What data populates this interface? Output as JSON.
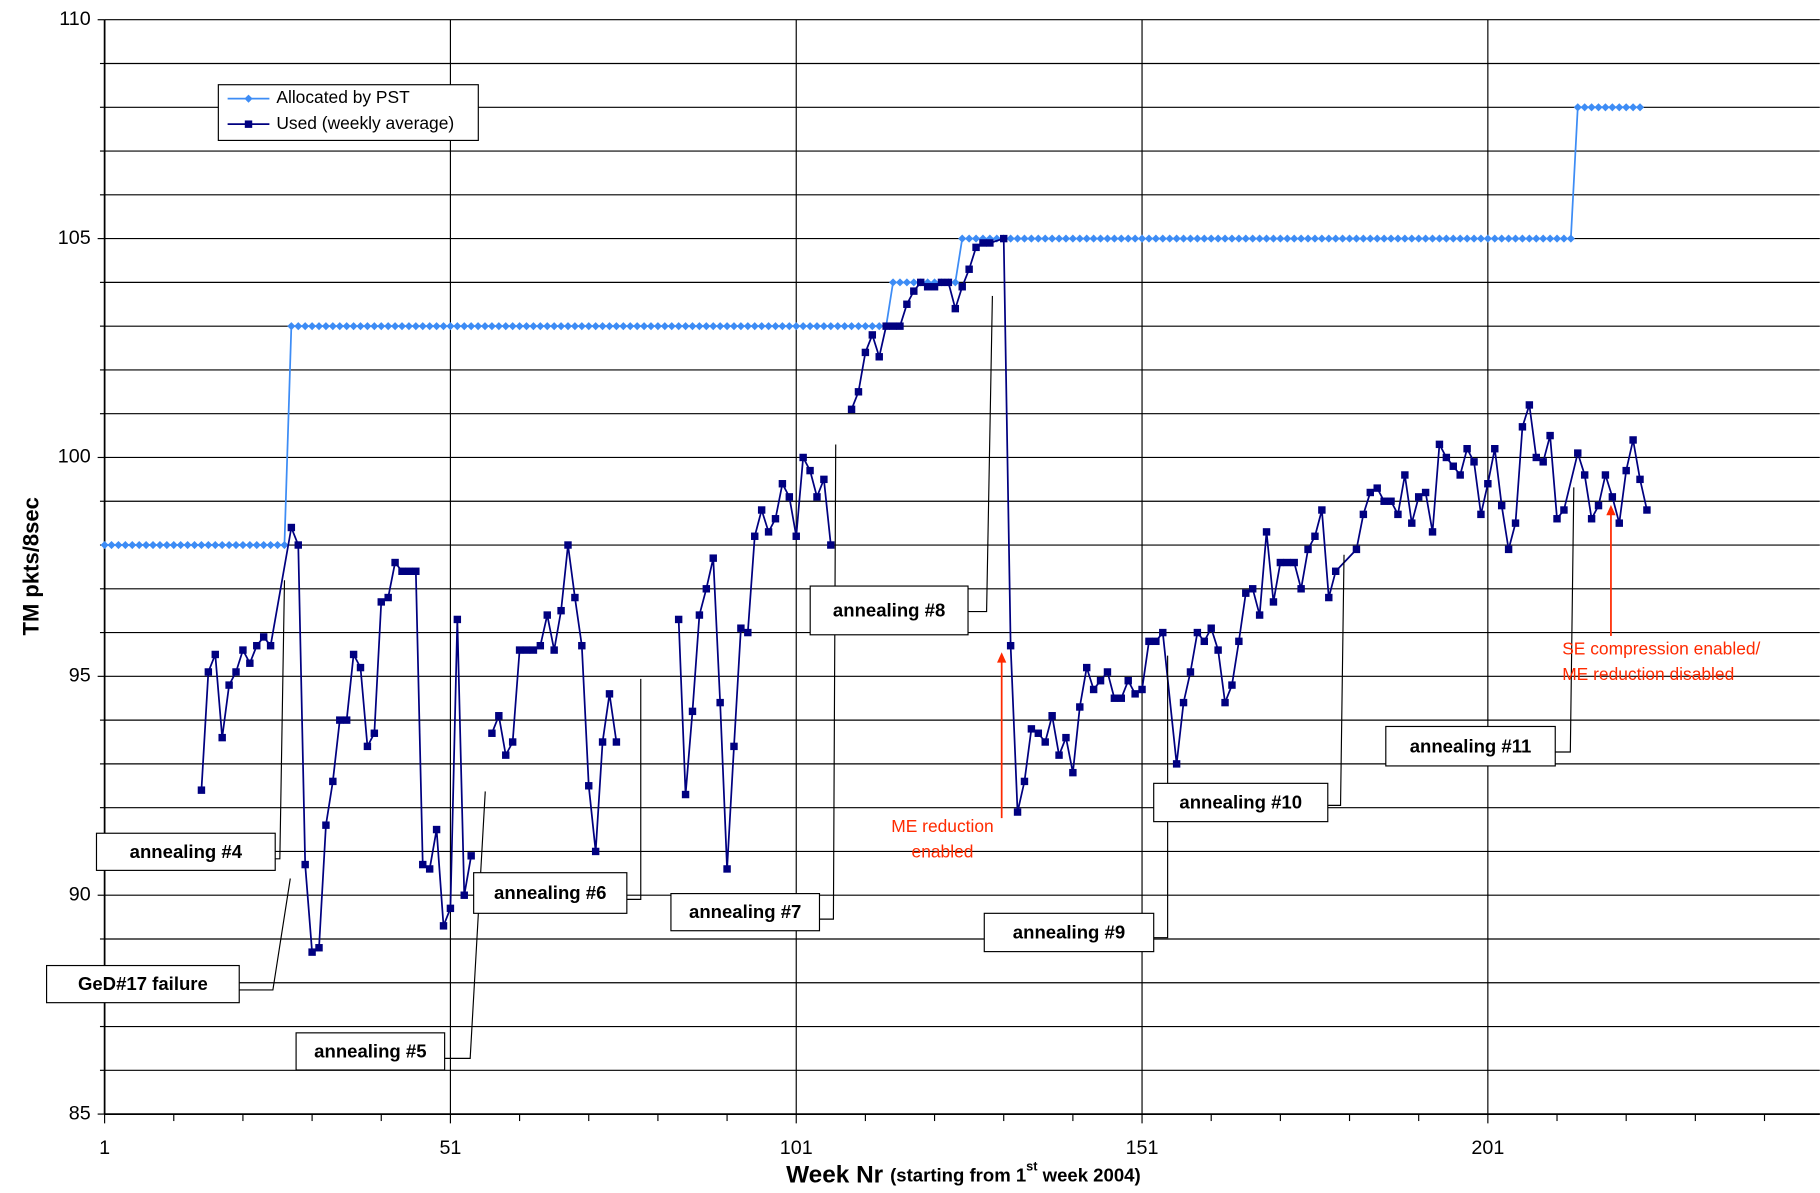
{
  "chart_data": {
    "type": "line",
    "y_label": "TM pkts/8sec",
    "x_label": {
      "bold": "Week Nr",
      "rest": "(starting from 1",
      "sup": "st",
      "tail": " week 2004)"
    },
    "xlim": [
      1,
      249
    ],
    "xticks": [
      1,
      51,
      101,
      151,
      201
    ],
    "x_minor_ticks": [
      11,
      21,
      31,
      41,
      61,
      71,
      81,
      91,
      111,
      121,
      131,
      141,
      161,
      171,
      181,
      191,
      211,
      221,
      231,
      241
    ],
    "ylim": [
      85,
      110
    ],
    "yticks": [
      85,
      90,
      95,
      100,
      105,
      110
    ],
    "y_grid": [
      86,
      87,
      88,
      89,
      91,
      92,
      93,
      94,
      96,
      97,
      98,
      99,
      101,
      102,
      103,
      104,
      106,
      107,
      108,
      109
    ],
    "grid": true,
    "legend": "upper left",
    "series": [
      {
        "name": "Allocated by PST",
        "color": "#3d8cf5",
        "marker": "diamond",
        "x": [
          1,
          2,
          3,
          4,
          5,
          6,
          7,
          8,
          9,
          10,
          11,
          12,
          13,
          14,
          15,
          16,
          17,
          18,
          19,
          20,
          21,
          22,
          23,
          24,
          25,
          26,
          27,
          28,
          29,
          30,
          31,
          32,
          33,
          34,
          35,
          36,
          37,
          38,
          39,
          40,
          41,
          42,
          43,
          44,
          45,
          46,
          47,
          48,
          49,
          50,
          51,
          52,
          53,
          54,
          55,
          56,
          57,
          58,
          59,
          60,
          61,
          62,
          63,
          64,
          65,
          66,
          67,
          68,
          69,
          70,
          71,
          72,
          73,
          74,
          75,
          76,
          77,
          78,
          79,
          80,
          81,
          82,
          83,
          84,
          85,
          86,
          87,
          88,
          89,
          90,
          91,
          92,
          93,
          94,
          95,
          96,
          97,
          98,
          99,
          100,
          101,
          102,
          103,
          104,
          105,
          106,
          107,
          108,
          109,
          110,
          111,
          112,
          113,
          114,
          115,
          116,
          117,
          118,
          119,
          120,
          121,
          122,
          123,
          124,
          125,
          126,
          127,
          128,
          129,
          130,
          131,
          132,
          133,
          134,
          135,
          136,
          137,
          138,
          139,
          140,
          141,
          142,
          143,
          144,
          145,
          146,
          147,
          148,
          149,
          150,
          151,
          152,
          153,
          154,
          155,
          156,
          157,
          158,
          159,
          160,
          161,
          162,
          163,
          164,
          165,
          166,
          167,
          168,
          169,
          170,
          171,
          172,
          173,
          174,
          175,
          176,
          177,
          178,
          179,
          180,
          181,
          182,
          183,
          184,
          185,
          186,
          187,
          188,
          189,
          190,
          191,
          192,
          193,
          194,
          195,
          196,
          197,
          198,
          199,
          200,
          201,
          202,
          203,
          204,
          205,
          206,
          207,
          208,
          209,
          210,
          211,
          212,
          213,
          214,
          215,
          216,
          217,
          218,
          219,
          220,
          221,
          222,
          223
        ],
        "values": [
          98,
          98,
          98,
          98,
          98,
          98,
          98,
          98,
          98,
          98,
          98,
          98,
          98,
          98,
          98,
          98,
          98,
          98,
          98,
          98,
          98,
          98,
          98,
          98,
          98,
          98,
          98,
          103,
          103,
          103,
          103,
          103,
          103,
          103,
          103,
          103,
          103,
          103,
          103,
          103,
          103,
          103,
          103,
          103,
          103,
          103,
          103,
          103,
          103,
          103,
          103,
          103,
          103,
          103,
          103,
          103,
          103,
          103,
          103,
          103,
          103,
          103,
          103,
          103,
          103,
          103,
          103,
          103,
          103,
          103,
          103,
          103,
          103,
          103,
          103,
          103,
          103,
          103,
          103,
          103,
          103,
          103,
          103,
          103,
          103,
          103,
          103,
          103,
          103,
          103,
          103,
          103,
          103,
          103,
          103,
          103,
          103,
          103,
          103,
          103,
          103,
          103,
          103,
          103,
          103,
          103,
          103,
          103,
          103,
          103,
          103,
          103,
          103,
          103,
          104,
          104,
          104,
          104,
          104,
          104,
          104,
          104,
          104,
          104,
          105,
          105,
          105,
          105,
          105,
          105,
          105,
          105,
          105,
          105,
          105,
          105,
          105,
          105,
          105,
          105,
          105,
          105,
          105,
          105,
          105,
          105,
          105,
          105,
          105,
          105,
          105,
          105,
          105,
          105,
          105,
          105,
          105,
          105,
          105,
          105,
          105,
          105,
          105,
          105,
          105,
          105,
          105,
          105,
          105,
          105,
          105,
          105,
          105,
          105,
          105,
          105,
          105,
          105,
          105,
          105,
          105,
          105,
          105,
          105,
          105,
          105,
          105,
          105,
          105,
          105,
          105,
          105,
          105,
          105,
          105,
          105,
          105,
          105,
          105,
          105,
          105,
          105,
          105,
          105,
          105,
          105,
          105,
          105,
          105,
          105,
          105,
          105,
          105,
          108,
          108,
          108,
          108,
          108,
          108,
          108,
          108,
          108,
          108
        ]
      },
      {
        "name": "Used (weekly average)",
        "color": "#000080",
        "marker": "square",
        "x": [
          15,
          16,
          17,
          18,
          19,
          20,
          21,
          22,
          23,
          24,
          25,
          28,
          29,
          30,
          31,
          32,
          33,
          34,
          35,
          36,
          37,
          38,
          39,
          40,
          41,
          42,
          43,
          44,
          45,
          46,
          47,
          48,
          49,
          50,
          51,
          52,
          53,
          54,
          55,
          57,
          58,
          59,
          60,
          61,
          62,
          63,
          64,
          65,
          66,
          67,
          68,
          69,
          70,
          71,
          72,
          73,
          74,
          75,
          80,
          84,
          85,
          86,
          87,
          88,
          89,
          90,
          91,
          92,
          93,
          94,
          95,
          96,
          97,
          98,
          99,
          100,
          101,
          102,
          103,
          104,
          105,
          106,
          107,
          109,
          110,
          111,
          112,
          113,
          114,
          115,
          116,
          117,
          118,
          119,
          120,
          121,
          122,
          123,
          124,
          125,
          126,
          127,
          128,
          129,
          131,
          132,
          133,
          134,
          135,
          136,
          137,
          138,
          139,
          140,
          141,
          142,
          143,
          144,
          145,
          146,
          147,
          148,
          149,
          150,
          151,
          152,
          153,
          154,
          156,
          157,
          158,
          159,
          160,
          161,
          162,
          163,
          164,
          165,
          166,
          167,
          168,
          169,
          170,
          171,
          172,
          173,
          174,
          175,
          176,
          177,
          178,
          179,
          182,
          183,
          184,
          185,
          186,
          187,
          188,
          189,
          190,
          191,
          192,
          193,
          194,
          195,
          196,
          197,
          198,
          199,
          200,
          201,
          202,
          203,
          204,
          205,
          206,
          207,
          208,
          209,
          210,
          211,
          212,
          214,
          215,
          216,
          217,
          218,
          219,
          220,
          221,
          222,
          223,
          224
        ],
        "values": [
          92.4,
          95.1,
          95.5,
          93.6,
          94.8,
          95.1,
          95.6,
          95.3,
          95.7,
          95.9,
          95.7,
          98.4,
          98.0,
          90.7,
          88.7,
          88.8,
          91.6,
          92.6,
          94.0,
          94.0,
          95.5,
          95.2,
          93.4,
          93.7,
          96.7,
          96.8,
          97.6,
          97.4,
          97.4,
          97.4,
          90.7,
          90.6,
          91.5,
          89.3,
          89.7,
          96.3,
          90.0,
          90.9,
          null,
          93.7,
          94.1,
          93.2,
          93.5,
          95.6,
          95.6,
          95.6,
          95.7,
          96.4,
          95.6,
          96.5,
          98.0,
          96.8,
          95.7,
          92.5,
          91.0,
          93.5,
          94.6,
          93.5,
          null,
          96.3,
          92.3,
          94.2,
          96.4,
          97.0,
          97.7,
          94.4,
          90.6,
          93.4,
          96.1,
          96.0,
          98.2,
          98.8,
          98.3,
          98.6,
          99.4,
          99.1,
          98.2,
          100.0,
          99.7,
          99.1,
          99.5,
          98.0,
          null,
          101.1,
          101.5,
          102.4,
          102.8,
          102.3,
          103.0,
          103.0,
          103.0,
          103.5,
          103.8,
          104.0,
          103.9,
          103.9,
          104.0,
          104.0,
          103.4,
          103.9,
          104.3,
          104.8,
          104.9,
          104.9,
          105.0,
          95.7,
          91.9,
          92.6,
          93.8,
          93.7,
          93.5,
          94.1,
          93.2,
          93.6,
          92.8,
          94.3,
          95.2,
          94.7,
          94.9,
          95.1,
          94.5,
          94.5,
          94.9,
          94.6,
          94.7,
          95.8,
          95.8,
          96.0,
          93.0,
          94.4,
          95.1,
          96.0,
          95.8,
          96.1,
          95.6,
          94.4,
          94.8,
          95.8,
          96.9,
          97.0,
          96.4,
          98.3,
          96.7,
          97.6,
          97.6,
          97.6,
          97.0,
          97.9,
          98.2,
          98.8,
          96.8,
          97.4,
          97.9,
          98.7,
          99.2,
          99.3,
          99.0,
          99.0,
          98.7,
          99.6,
          98.5,
          99.1,
          99.2,
          98.3,
          100.3,
          100.0,
          99.8,
          99.6,
          100.2,
          99.9,
          98.7,
          99.4,
          100.2,
          98.9,
          97.9,
          98.5,
          100.7,
          101.2,
          100.0,
          99.9,
          100.5,
          98.6,
          98.8,
          100.1,
          99.6,
          98.6,
          98.9,
          99.6,
          99.1,
          98.5,
          99.7,
          100.4,
          99.5,
          98.8
        ]
      }
    ],
    "annotations": [
      {
        "text": "annealing #4",
        "style": "box"
      },
      {
        "text": "GeD#17 failure",
        "style": "box"
      },
      {
        "text": "annealing #5",
        "style": "box"
      },
      {
        "text": "annealing #6",
        "style": "box"
      },
      {
        "text": "annealing #7",
        "style": "box"
      },
      {
        "text": "annealing #8",
        "style": "box"
      },
      {
        "text": "annealing #9",
        "style": "box"
      },
      {
        "text": "annealing #10",
        "style": "box"
      },
      {
        "text": "annealing #11",
        "style": "box"
      },
      {
        "lines": [
          "ME reduction",
          "enabled"
        ],
        "style": "red-arrow",
        "color": "#ff2a00"
      },
      {
        "lines": [
          "SE compression enabled/",
          "ME reduction disabled"
        ],
        "style": "red-arrow",
        "color": "#ff2a00"
      }
    ]
  }
}
